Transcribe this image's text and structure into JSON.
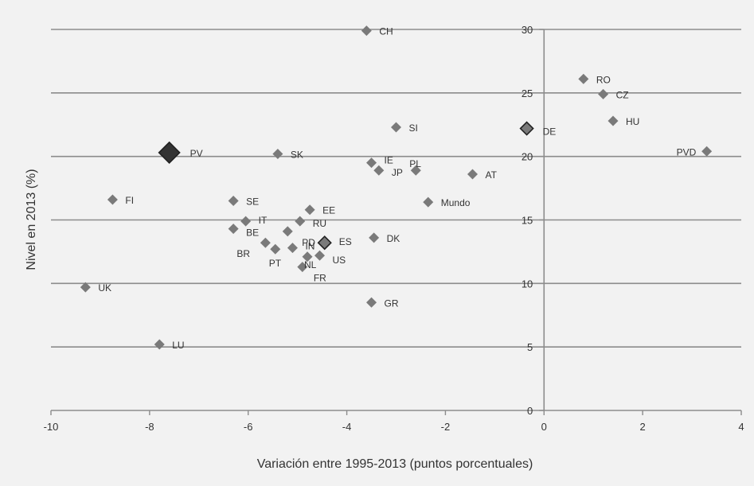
{
  "chart_data": {
    "type": "scatter",
    "xlabel": "Variación entre 1995-2013 (puntos porcentuales)",
    "ylabel": "Nivel en 2013 (%)",
    "xlim": [
      -10,
      4
    ],
    "ylim": [
      0,
      30
    ],
    "xticks": [
      "-10",
      "-8",
      "-6",
      "-4",
      "-2",
      "0",
      "2",
      "4"
    ],
    "yticks": [
      "0",
      "5",
      "10",
      "15",
      "20",
      "25",
      "30"
    ],
    "grid": "horizontal",
    "colors": {
      "point": "#7a7a7a",
      "highlight": "#333333",
      "grid": "#8c8c8c",
      "axis": "#8c8c8c"
    },
    "points": [
      {
        "label": "CH",
        "x": -3.6,
        "y": 29.9,
        "style": "normal"
      },
      {
        "label": "RO",
        "x": 0.8,
        "y": 26.1,
        "style": "normal"
      },
      {
        "label": "CZ",
        "x": 1.2,
        "y": 24.9,
        "style": "normal"
      },
      {
        "label": "HU",
        "x": 1.4,
        "y": 22.8,
        "style": "normal"
      },
      {
        "label": "DE",
        "x": -0.35,
        "y": 22.2,
        "style": "outlined"
      },
      {
        "label": "SI",
        "x": -3.0,
        "y": 22.3,
        "style": "normal"
      },
      {
        "label": "PVD",
        "x": 3.3,
        "y": 20.4,
        "style": "normal"
      },
      {
        "label": "PV",
        "x": -7.6,
        "y": 20.3,
        "style": "large"
      },
      {
        "label": "SK",
        "x": -5.4,
        "y": 20.2,
        "style": "normal"
      },
      {
        "label": "PL",
        "x": -2.6,
        "y": 18.9,
        "style": "normal"
      },
      {
        "label": "IE",
        "x": -3.5,
        "y": 19.5,
        "style": "normal"
      },
      {
        "label": "JP",
        "x": -3.35,
        "y": 18.9,
        "style": "normal"
      },
      {
        "label": "AT",
        "x": -1.45,
        "y": 18.6,
        "style": "normal"
      },
      {
        "label": "FI",
        "x": -8.75,
        "y": 16.6,
        "style": "normal"
      },
      {
        "label": "SE",
        "x": -6.3,
        "y": 16.5,
        "style": "normal"
      },
      {
        "label": "Mundo",
        "x": -2.35,
        "y": 16.4,
        "style": "normal"
      },
      {
        "label": "EE",
        "x": -4.75,
        "y": 15.8,
        "style": "normal"
      },
      {
        "label": "IT",
        "x": -6.05,
        "y": 14.9,
        "style": "normal"
      },
      {
        "label": "RU",
        "x": -4.95,
        "y": 14.9,
        "style": "normal"
      },
      {
        "label": "BE",
        "x": -6.3,
        "y": 14.3,
        "style": "normal"
      },
      {
        "label": "PD",
        "x": -5.2,
        "y": 14.1,
        "style": "normal"
      },
      {
        "label": "DK",
        "x": -3.45,
        "y": 13.6,
        "style": "normal"
      },
      {
        "label": "ES",
        "x": -4.45,
        "y": 13.2,
        "style": "outlined"
      },
      {
        "label": "BR",
        "x": -5.65,
        "y": 13.2,
        "style": "normal"
      },
      {
        "label": "PT",
        "x": -5.45,
        "y": 12.7,
        "style": "normal"
      },
      {
        "label": "IN",
        "x": -5.1,
        "y": 12.8,
        "style": "normal"
      },
      {
        "label": "US",
        "x": -4.55,
        "y": 12.2,
        "style": "normal"
      },
      {
        "label": "NL",
        "x": -4.8,
        "y": 12.1,
        "style": "normal"
      },
      {
        "label": "FR",
        "x": -4.9,
        "y": 11.3,
        "style": "normal"
      },
      {
        "label": "GR",
        "x": -3.5,
        "y": 8.5,
        "style": "normal"
      },
      {
        "label": "UK",
        "x": -9.3,
        "y": 9.7,
        "style": "normal"
      },
      {
        "label": "LU",
        "x": -7.8,
        "y": 5.2,
        "style": "normal"
      }
    ]
  }
}
